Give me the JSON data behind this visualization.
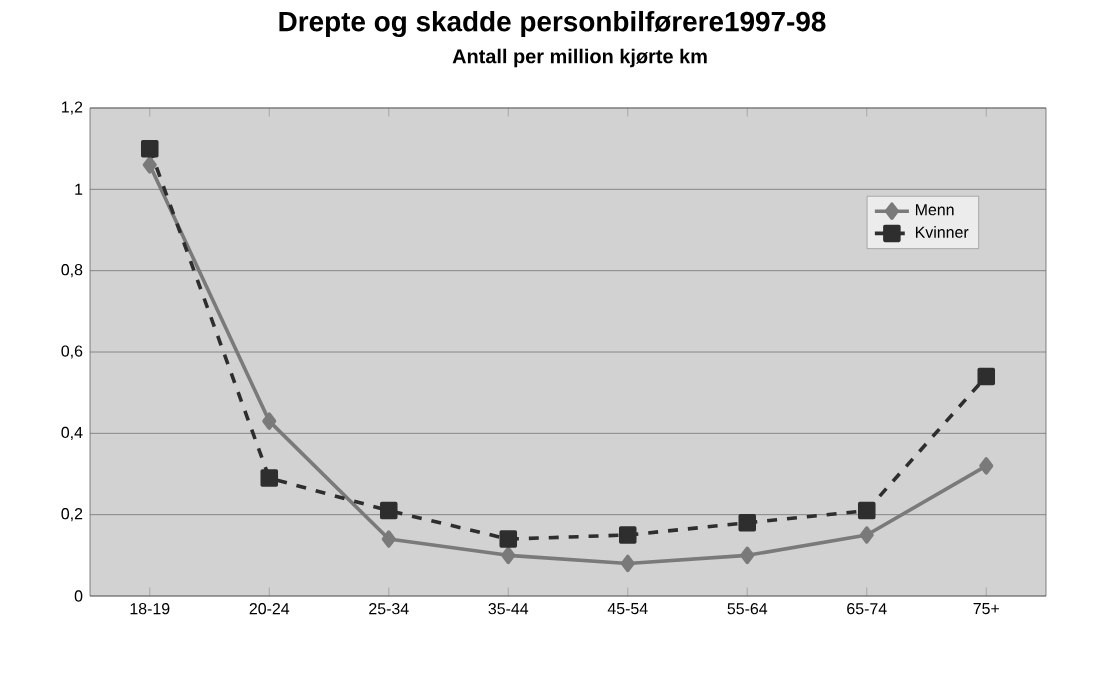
{
  "chart_data": {
    "type": "line",
    "title": "Drepte og skadde personbilførere1997-98",
    "subtitle": "Antall per million kjørte km",
    "categories": [
      "18-19",
      "20-24",
      "25-34",
      "35-44",
      "45-54",
      "55-64",
      "65-74",
      "75+"
    ],
    "series": [
      {
        "name": "Menn",
        "color": "#7a7a7a",
        "marker": "diamond",
        "line_style": "solid",
        "values": [
          1.06,
          0.43,
          0.14,
          0.1,
          0.08,
          0.1,
          0.15,
          0.32
        ]
      },
      {
        "name": "Kvinner",
        "color": "#2e2e2e",
        "marker": "square",
        "line_style": "dashed",
        "values": [
          1.1,
          0.29,
          0.21,
          0.14,
          0.15,
          0.18,
          0.21,
          0.54
        ]
      }
    ],
    "ylim": [
      0,
      1.2
    ],
    "yticks": [
      0,
      {
        "value": 0.2,
        "label": "0,2"
      },
      {
        "value": 0.4,
        "label": "0,4"
      },
      {
        "value": 0.6,
        "label": "0,6"
      },
      {
        "value": 0.8,
        "label": "0,8"
      },
      1,
      {
        "value": 1.2,
        "label": "1,2"
      }
    ],
    "grid": "y",
    "legend": "top right"
  }
}
